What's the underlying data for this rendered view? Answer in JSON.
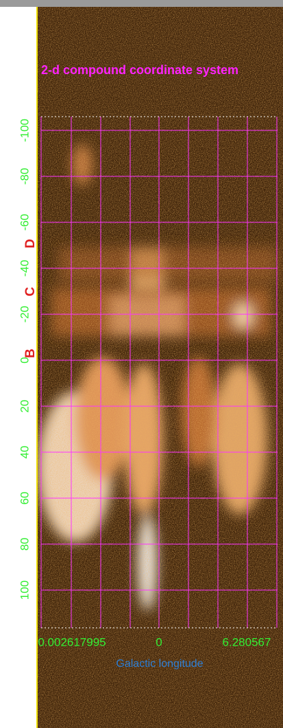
{
  "title": "2-d compound coordinate system",
  "y_axis": {
    "ticks": [
      -100,
      -80,
      -60,
      -40,
      -20,
      0,
      20,
      40,
      60,
      80,
      100
    ]
  },
  "x_axis": {
    "label": "Galactic longitude",
    "ticks": [
      "0.002617995",
      "0",
      "6.280567"
    ]
  },
  "markers": [
    "B",
    "C",
    "D"
  ]
}
